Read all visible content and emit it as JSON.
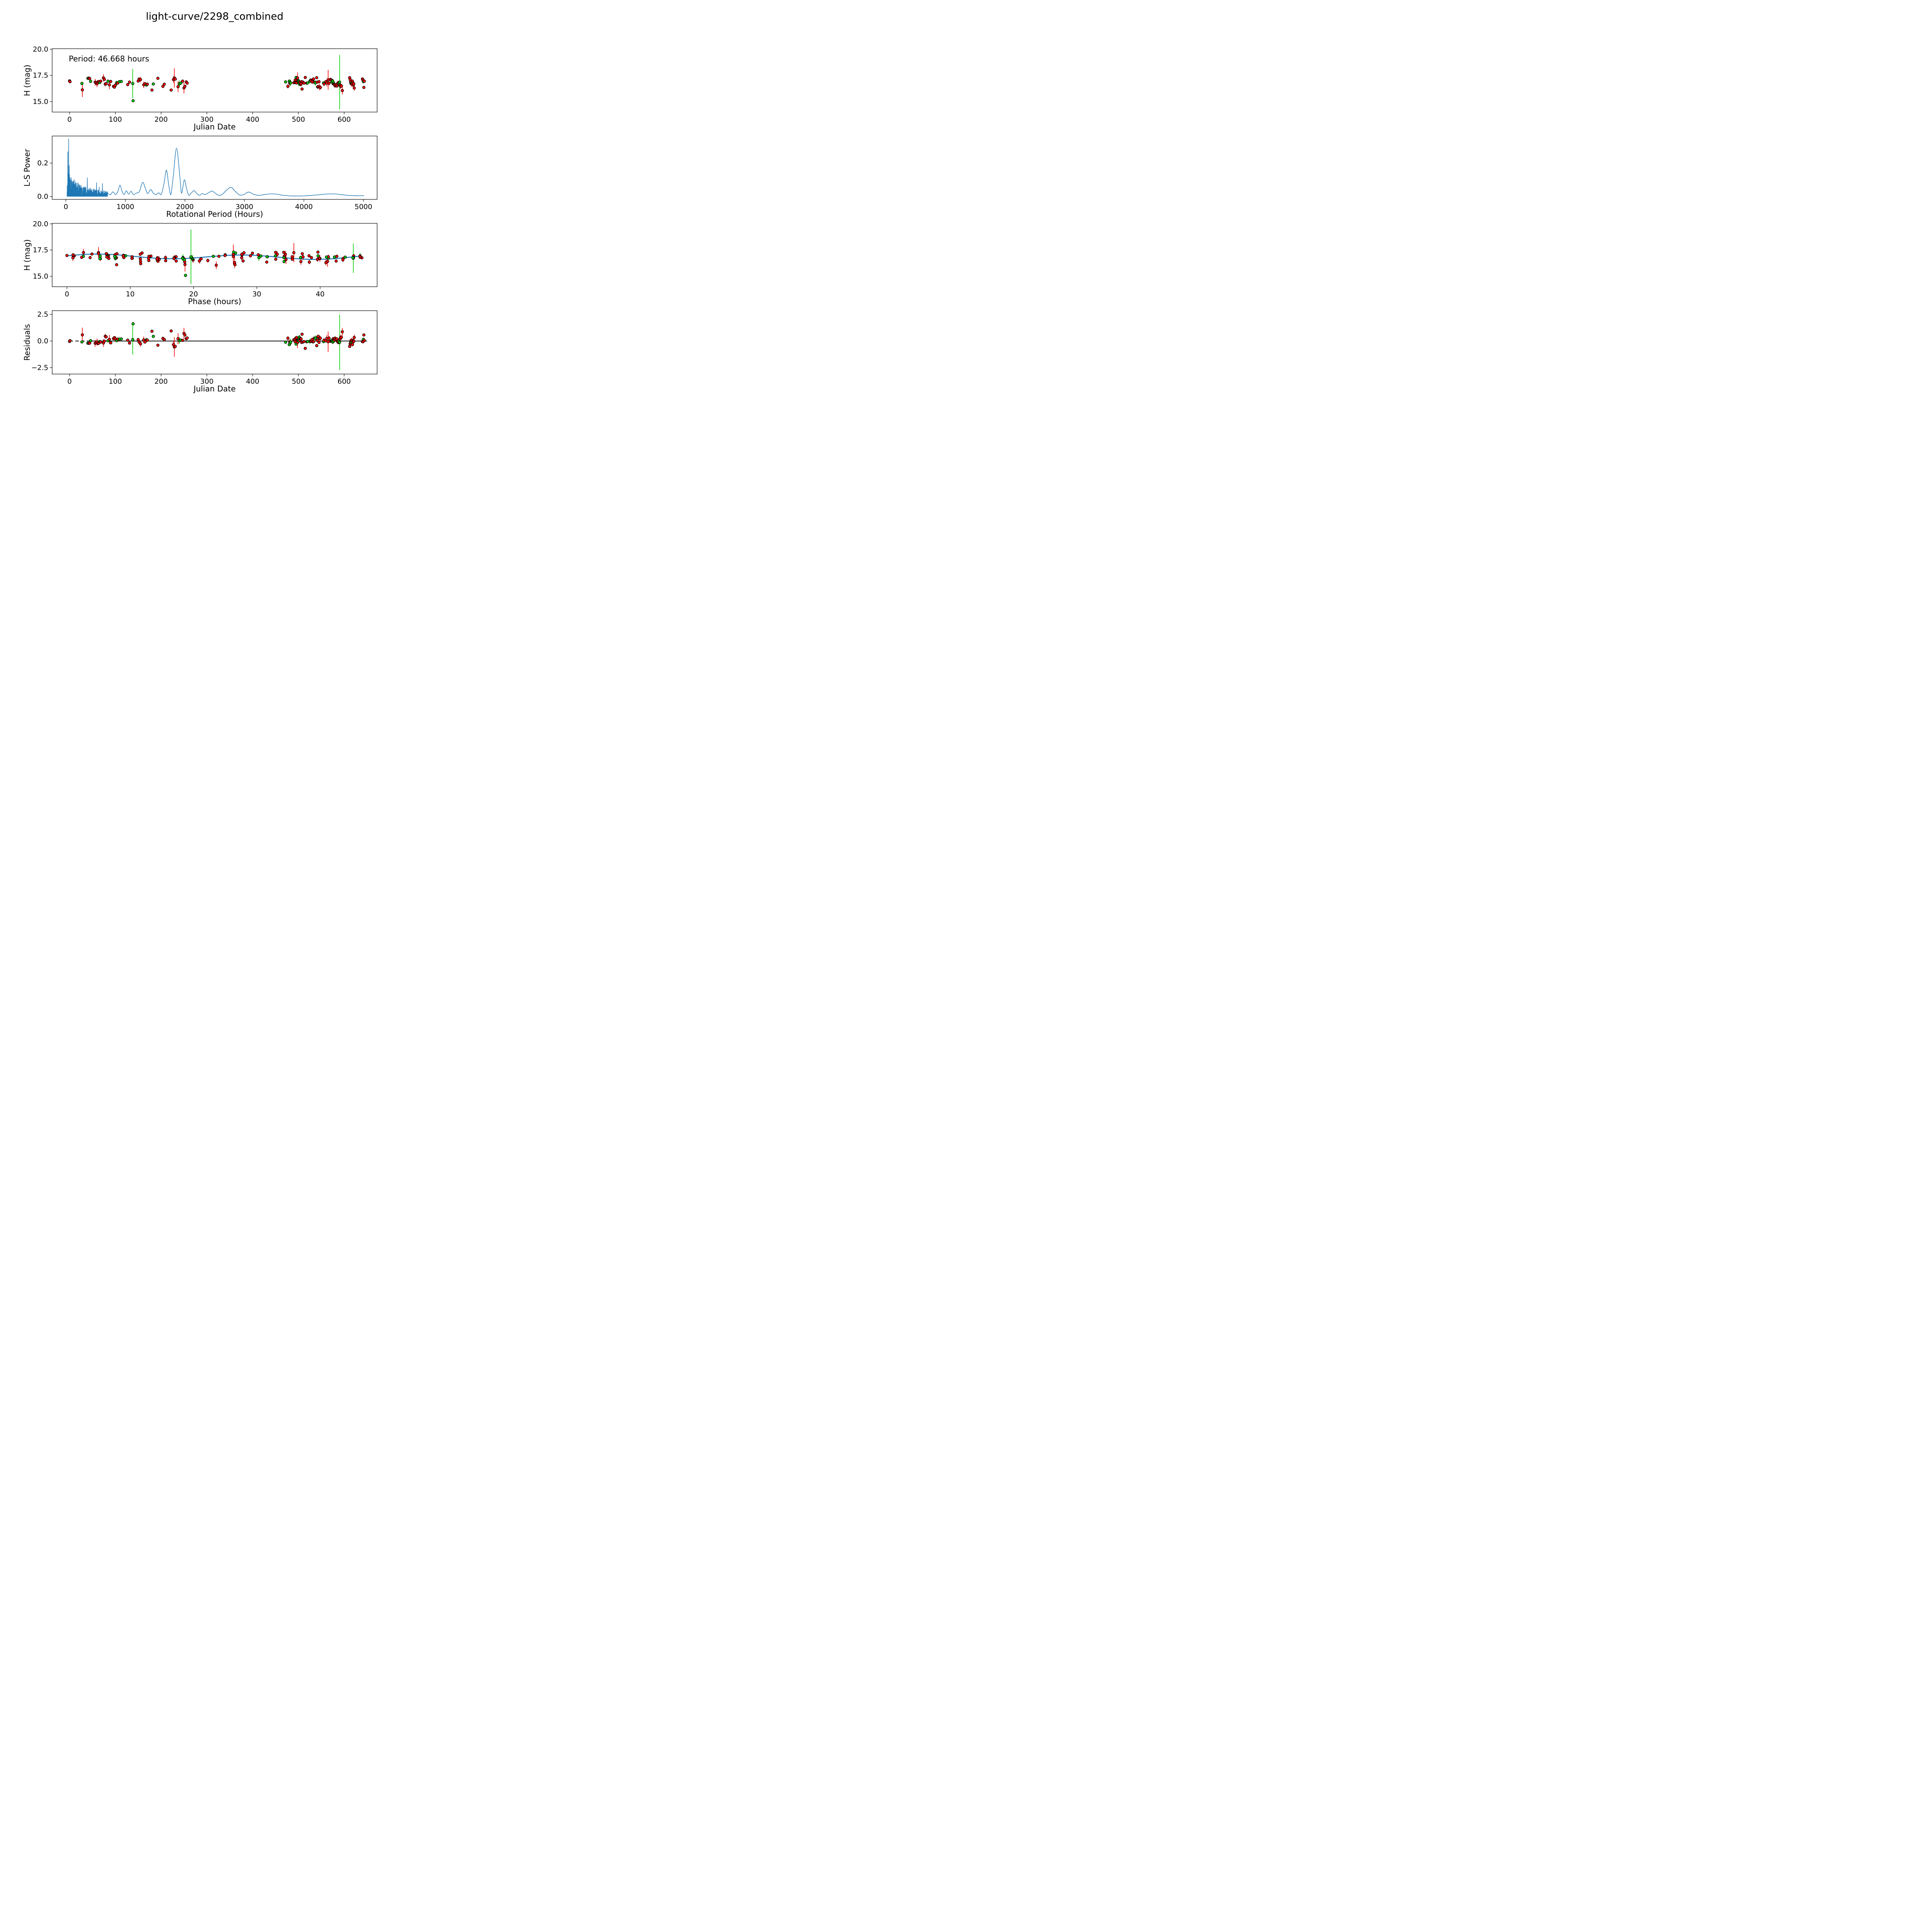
{
  "title": "light-curve/2298_combined",
  "annotation": "Period: 46.668 hours",
  "period_hours": 46.668,
  "colors": {
    "red_series": "#ff0000",
    "green_series": "#00cc00",
    "marker_edge": "#000000",
    "fit_line": "#1f77b4",
    "zero_line": "#000000",
    "axis": "#000000"
  },
  "chart_data": [
    {
      "id": "lightcurve",
      "type": "scatter",
      "xlabel": "Julian Date",
      "ylabel": "H (mag)",
      "annotation": "Period: 46.668 hours",
      "xlim": [
        -38,
        672
      ],
      "ylim": [
        14.0,
        20.05
      ],
      "xticks": [
        0,
        100,
        200,
        300,
        400,
        500,
        600
      ],
      "ytick_values": [
        15.0,
        17.5,
        20.0
      ],
      "ytick_labels": [
        "15.0",
        "17.5",
        "20.0"
      ],
      "grid": false,
      "legend": "none",
      "series_note": "red and green points with error bars from shared observations list (jd, H)"
    },
    {
      "id": "periodogram",
      "type": "line",
      "xlabel": "Rotational Period (Hours)",
      "ylabel": "L-S Power",
      "xlim": [
        -230,
        5230
      ],
      "ylim": [
        -0.017,
        0.362
      ],
      "xticks": [
        0,
        1000,
        2000,
        3000,
        4000,
        5000
      ],
      "ytick_values": [
        0.0,
        0.2
      ],
      "ytick_labels": [
        "0.0",
        "0.2"
      ],
      "grid": false,
      "best_period_hours": 46.668,
      "best_period_power": 0.345,
      "major_peaks": [
        [
          33,
          0.268
        ],
        [
          38,
          0.14
        ],
        [
          46.7,
          0.345
        ],
        [
          52,
          0.12
        ],
        [
          56,
          0.185
        ],
        [
          62,
          0.13
        ],
        [
          70,
          0.11
        ],
        [
          78,
          0.1
        ],
        [
          90,
          0.105
        ],
        [
          100,
          0.095
        ],
        [
          110,
          0.088
        ],
        [
          122,
          0.08
        ],
        [
          134,
          0.092
        ],
        [
          148,
          0.072
        ],
        [
          160,
          0.06
        ],
        [
          175,
          0.065
        ],
        [
          190,
          0.052
        ],
        [
          205,
          0.048
        ],
        [
          220,
          0.06
        ],
        [
          235,
          0.05
        ],
        [
          250,
          0.068
        ],
        [
          270,
          0.045
        ],
        [
          290,
          0.052
        ],
        [
          310,
          0.042
        ],
        [
          330,
          0.038
        ],
        [
          360,
          0.112
        ],
        [
          385,
          0.045
        ],
        [
          410,
          0.05
        ],
        [
          440,
          0.042
        ],
        [
          470,
          0.046
        ],
        [
          500,
          0.04
        ],
        [
          515,
          0.083
        ],
        [
          540,
          0.04
        ],
        [
          560,
          0.057
        ],
        [
          590,
          0.035
        ],
        [
          615,
          0.078
        ],
        [
          640,
          0.036
        ],
        [
          665,
          0.03
        ]
      ],
      "smooth_envelope": [
        [
          700,
          0.022
        ],
        [
          745,
          0.01
        ],
        [
          790,
          0.028
        ],
        [
          835,
          0.012
        ],
        [
          875,
          0.032
        ],
        [
          910,
          0.068
        ],
        [
          945,
          0.03
        ],
        [
          980,
          0.012
        ],
        [
          1015,
          0.035
        ],
        [
          1055,
          0.014
        ],
        [
          1095,
          0.032
        ],
        [
          1135,
          0.012
        ],
        [
          1180,
          0.02
        ],
        [
          1235,
          0.03
        ],
        [
          1290,
          0.085
        ],
        [
          1335,
          0.05
        ],
        [
          1375,
          0.018
        ],
        [
          1425,
          0.042
        ],
        [
          1470,
          0.02
        ],
        [
          1515,
          0.012
        ],
        [
          1560,
          0.022
        ],
        [
          1605,
          0.014
        ],
        [
          1650,
          0.08
        ],
        [
          1690,
          0.158
        ],
        [
          1728,
          0.07
        ],
        [
          1764,
          0.012
        ],
        [
          1805,
          0.12
        ],
        [
          1860,
          0.29
        ],
        [
          1915,
          0.12
        ],
        [
          1945,
          0.02
        ],
        [
          1990,
          0.1
        ],
        [
          2030,
          0.045
        ],
        [
          2065,
          0.008
        ],
        [
          2110,
          0.022
        ],
        [
          2155,
          0.035
        ],
        [
          2200,
          0.018
        ],
        [
          2245,
          0.008
        ],
        [
          2290,
          0.018
        ],
        [
          2335,
          0.012
        ],
        [
          2395,
          0.022
        ],
        [
          2455,
          0.033
        ],
        [
          2510,
          0.02
        ],
        [
          2565,
          0.008
        ],
        [
          2625,
          0.012
        ],
        [
          2700,
          0.038
        ],
        [
          2775,
          0.055
        ],
        [
          2845,
          0.032
        ],
        [
          2915,
          0.01
        ],
        [
          2990,
          0.012
        ],
        [
          3070,
          0.027
        ],
        [
          3150,
          0.014
        ],
        [
          3240,
          0.007
        ],
        [
          3340,
          0.012
        ],
        [
          3440,
          0.016
        ],
        [
          3540,
          0.014
        ],
        [
          3650,
          0.007
        ],
        [
          3770,
          0.004
        ],
        [
          3890,
          0.003
        ],
        [
          4010,
          0.004
        ],
        [
          4130,
          0.007
        ],
        [
          4260,
          0.011
        ],
        [
          4390,
          0.015
        ],
        [
          4500,
          0.016
        ],
        [
          4620,
          0.012
        ],
        [
          4740,
          0.007
        ],
        [
          4860,
          0.005
        ],
        [
          5010,
          0.005
        ]
      ],
      "noise_forest": {
        "x_min": 20,
        "x_max": 700,
        "base_amp": 0.105,
        "decay_scale": 240,
        "floor": 0.018
      }
    },
    {
      "id": "phased_lightcurve",
      "type": "scatter+line",
      "xlabel": "Phase (hours)",
      "ylabel": "H (mag)",
      "xlim": [
        -2.33,
        49.0
      ],
      "ylim": [
        14.0,
        20.05
      ],
      "xticks": [
        0,
        10,
        20,
        30,
        40
      ],
      "ytick_values": [
        15.0,
        17.5,
        20.0
      ],
      "ytick_labels": [
        "15.0",
        "17.5",
        "20.0"
      ],
      "grid": false,
      "phase_formula": "phase = (jd * 24) mod 46.668",
      "fit_model": {
        "mean": 16.855,
        "a1": 0.055,
        "phi1": 9.0,
        "a2": 0.215,
        "phi2": 4.6,
        "period": 46.668
      }
    },
    {
      "id": "residuals",
      "type": "scatter",
      "xlabel": "Julian Date",
      "ylabel": "Residuals",
      "xlim": [
        -38,
        672
      ],
      "ylim": [
        -3.1,
        2.85
      ],
      "xticks": [
        0,
        100,
        200,
        300,
        400,
        500,
        600
      ],
      "ytick_values": [
        -2.5,
        0.0,
        2.5
      ],
      "ytick_labels": [
        "−2.5",
        "0.0",
        "2.5"
      ],
      "grid": false,
      "residual_formula": "residual = model(phase) - H",
      "zero_line": {
        "dashed_span": [
          0,
          45
        ],
        "solid_span": [
          38,
          650
        ]
      }
    }
  ],
  "observations": [
    [
      0,
      16.98,
      0.06,
      "r"
    ],
    [
      1,
      16.9,
      0.1,
      "r"
    ],
    [
      27,
      16.73,
      0.13,
      "g"
    ],
    [
      28,
      16.12,
      0.68,
      "r"
    ],
    [
      40,
      17.22,
      0.13,
      "g"
    ],
    [
      42,
      17.24,
      0.11,
      "r"
    ],
    [
      44,
      17.2,
      0.06,
      "r"
    ],
    [
      46,
      16.93,
      0.05,
      "g"
    ],
    [
      56,
      16.85,
      0.32,
      "r"
    ],
    [
      58,
      16.78,
      0.06,
      "r"
    ],
    [
      60,
      16.7,
      0.32,
      "r"
    ],
    [
      62,
      16.86,
      0.2,
      "r"
    ],
    [
      64,
      16.9,
      0.11,
      "r"
    ],
    [
      66,
      16.82,
      0.09,
      "g"
    ],
    [
      68,
      16.95,
      0.13,
      "r"
    ],
    [
      74,
      17.26,
      0.36,
      "r"
    ],
    [
      76,
      17.12,
      0.08,
      "r"
    ],
    [
      78,
      16.67,
      0.22,
      "r"
    ],
    [
      80,
      16.7,
      0.11,
      "r"
    ],
    [
      84,
      16.95,
      0.09,
      "g"
    ],
    [
      87,
      16.6,
      0.42,
      "r"
    ],
    [
      90,
      16.92,
      0.16,
      "r"
    ],
    [
      96,
      16.45,
      0.11,
      "r"
    ],
    [
      98,
      16.38,
      0.14,
      "r"
    ],
    [
      100,
      16.55,
      0.26,
      "r"
    ],
    [
      103,
      16.8,
      0.2,
      "g"
    ],
    [
      105,
      16.76,
      0.11,
      "r"
    ],
    [
      109,
      16.9,
      0.13,
      "g"
    ],
    [
      113,
      16.92,
      0.09,
      "g"
    ],
    [
      127,
      16.62,
      0.13,
      "r"
    ],
    [
      131,
      16.86,
      0.11,
      "r"
    ],
    [
      138,
      16.72,
      1.4,
      "g"
    ],
    [
      138.84,
      15.08,
      0.05,
      "g"
    ],
    [
      150,
      16.96,
      0.11,
      "r"
    ],
    [
      152,
      17.15,
      0.13,
      "r"
    ],
    [
      155,
      17.1,
      0.26,
      "r"
    ],
    [
      162,
      16.6,
      0.31,
      "r"
    ],
    [
      165,
      16.7,
      0.16,
      "r"
    ],
    [
      168,
      16.58,
      0.11,
      "g"
    ],
    [
      170,
      16.66,
      0.16,
      "r"
    ],
    [
      180,
      16.1,
      0.09,
      "r"
    ],
    [
      183,
      16.68,
      0.11,
      "g"
    ],
    [
      193,
      17.22,
      0.09,
      "r"
    ],
    [
      204,
      16.45,
      0.16,
      "r"
    ],
    [
      207,
      16.66,
      0.13,
      "r"
    ],
    [
      222,
      16.1,
      0.13,
      "r"
    ],
    [
      227,
      17.1,
      0.31,
      "r"
    ],
    [
      229,
      17.25,
      0.92,
      "r"
    ],
    [
      231,
      17.15,
      0.13,
      "r"
    ],
    [
      237,
      16.42,
      0.52,
      "r"
    ],
    [
      240,
      16.7,
      0.31,
      "g"
    ],
    [
      243,
      16.76,
      0.11,
      "g"
    ],
    [
      247,
      16.95,
      0.13,
      "r"
    ],
    [
      250,
      16.3,
      0.52,
      "r"
    ],
    [
      252,
      16.46,
      0.13,
      "r"
    ],
    [
      255,
      16.88,
      0.09,
      "r"
    ],
    [
      257,
      16.76,
      0.11,
      "r"
    ],
    [
      472,
      16.88,
      0.09,
      "g"
    ],
    [
      477,
      16.45,
      0.19,
      "r"
    ],
    [
      480,
      16.95,
      0.11,
      "g"
    ],
    [
      481,
      16.76,
      0.26,
      "r"
    ],
    [
      482,
      16.83,
      0.09,
      "g"
    ],
    [
      483,
      16.78,
      0.31,
      "g"
    ],
    [
      490,
      16.8,
      0.11,
      "r"
    ],
    [
      492,
      16.86,
      0.16,
      "r"
    ],
    [
      493,
      17.05,
      0.11,
      "r"
    ],
    [
      494,
      16.8,
      0.13,
      "r"
    ],
    [
      495,
      17.3,
      0.11,
      "g"
    ],
    [
      496,
      16.78,
      0.11,
      "r"
    ],
    [
      497,
      17.02,
      0.13,
      "r"
    ],
    [
      498,
      17.26,
      0.52,
      "r"
    ],
    [
      499,
      16.95,
      0.16,
      "r"
    ],
    [
      500,
      17.0,
      0.21,
      "g"
    ],
    [
      500.7,
      16.9,
      0.11,
      "g"
    ],
    [
      501,
      16.78,
      0.31,
      "g"
    ],
    [
      502,
      16.7,
      0.21,
      "g"
    ],
    [
      503,
      16.86,
      0.11,
      "r"
    ],
    [
      504,
      16.78,
      0.13,
      "r"
    ],
    [
      505,
      16.62,
      0.13,
      "r"
    ],
    [
      506,
      16.72,
      0.16,
      "r"
    ],
    [
      507,
      16.9,
      0.13,
      "r"
    ],
    [
      508,
      16.2,
      0.13,
      "r"
    ],
    [
      510,
      16.86,
      0.09,
      "r"
    ],
    [
      512,
      16.76,
      0.09,
      "r"
    ],
    [
      515,
      17.3,
      0.09,
      "r"
    ],
    [
      518,
      16.76,
      0.11,
      "r"
    ],
    [
      520,
      16.78,
      0.13,
      "g"
    ],
    [
      525,
      16.95,
      0.26,
      "g"
    ],
    [
      527,
      17.05,
      0.13,
      "r"
    ],
    [
      528,
      16.98,
      0.16,
      "r"
    ],
    [
      530,
      16.88,
      0.21,
      "r"
    ],
    [
      532,
      17.1,
      0.16,
      "r"
    ],
    [
      533,
      17.16,
      0.13,
      "r"
    ],
    [
      535,
      16.83,
      0.11,
      "r"
    ],
    [
      537,
      16.78,
      0.26,
      "g"
    ],
    [
      540,
      17.28,
      0.09,
      "r"
    ],
    [
      541,
      16.86,
      0.11,
      "r"
    ],
    [
      542,
      16.4,
      0.16,
      "g"
    ],
    [
      543,
      16.42,
      0.21,
      "r"
    ],
    [
      545,
      16.9,
      0.13,
      "r"
    ],
    [
      546,
      16.4,
      0.31,
      "r"
    ],
    [
      548,
      16.35,
      0.21,
      "r"
    ],
    [
      555,
      16.78,
      0.16,
      "g"
    ],
    [
      556,
      16.68,
      0.21,
      "r"
    ],
    [
      560,
      16.9,
      0.16,
      "r"
    ],
    [
      562,
      16.76,
      0.31,
      "r"
    ],
    [
      565,
      17.08,
      0.95,
      "r"
    ],
    [
      567,
      16.76,
      0.21,
      "r"
    ],
    [
      570,
      17.12,
      0.13,
      "r"
    ],
    [
      572,
      17.05,
      0.16,
      "r"
    ],
    [
      573,
      16.86,
      0.11,
      "g"
    ],
    [
      574,
      17.0,
      0.13,
      "g"
    ],
    [
      575,
      16.95,
      0.16,
      "g"
    ],
    [
      576,
      16.7,
      0.13,
      "r"
    ],
    [
      577,
      16.78,
      0.11,
      "g"
    ],
    [
      578,
      16.66,
      0.11,
      "r"
    ],
    [
      579,
      16.62,
      0.11,
      "r"
    ],
    [
      580,
      16.5,
      0.16,
      "r"
    ],
    [
      582,
      16.56,
      0.21,
      "r"
    ],
    [
      584,
      16.48,
      0.13,
      "r"
    ],
    [
      585,
      16.62,
      0.16,
      "r"
    ],
    [
      586,
      16.76,
      0.21,
      "r"
    ],
    [
      588,
      16.72,
      0.26,
      "g"
    ],
    [
      589,
      16.83,
      0.16,
      "g"
    ],
    [
      590,
      16.85,
      2.6,
      "g"
    ],
    [
      591,
      16.56,
      0.21,
      "r"
    ],
    [
      592,
      16.46,
      0.26,
      "r"
    ],
    [
      594,
      16.5,
      0.19,
      "r"
    ],
    [
      596,
      16.05,
      0.36,
      "r"
    ],
    [
      612,
      17.28,
      0.11,
      "r"
    ],
    [
      613,
      17.1,
      0.16,
      "r"
    ],
    [
      614,
      16.86,
      0.16,
      "r"
    ],
    [
      615,
      16.72,
      0.21,
      "r"
    ],
    [
      616,
      16.78,
      0.16,
      "g"
    ],
    [
      617,
      16.66,
      0.26,
      "r"
    ],
    [
      618,
      16.95,
      0.16,
      "r"
    ],
    [
      619,
      16.78,
      0.21,
      "r"
    ],
    [
      620,
      16.6,
      0.21,
      "r"
    ],
    [
      621,
      16.7,
      0.16,
      "r"
    ],
    [
      622,
      16.3,
      0.26,
      "r"
    ],
    [
      640,
      17.16,
      0.11,
      "r"
    ],
    [
      641,
      17.05,
      0.13,
      "r"
    ],
    [
      642,
      16.9,
      0.09,
      "g"
    ],
    [
      643,
      16.35,
      0.11,
      "r"
    ],
    [
      644,
      16.95,
      0.11,
      "r"
    ]
  ]
}
